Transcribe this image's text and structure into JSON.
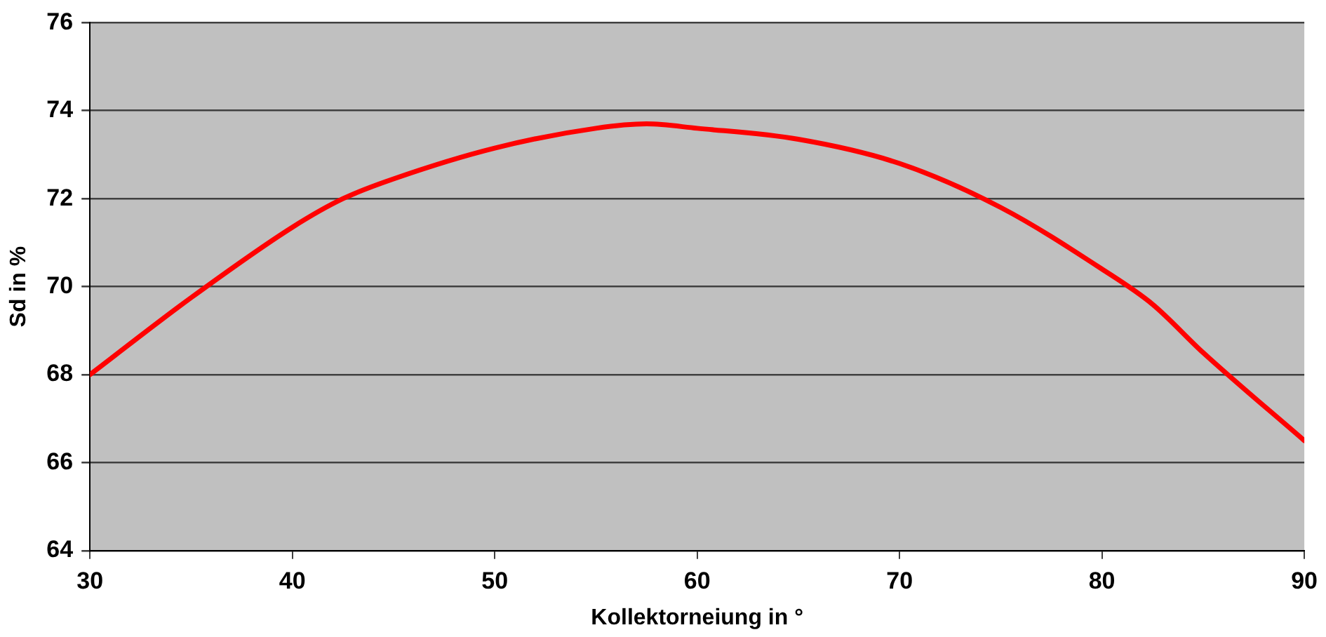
{
  "chart_data": {
    "type": "line",
    "xlabel": "Kollektorneiung in °",
    "ylabel": "Sd in %",
    "x": [
      30,
      35,
      40,
      42.5,
      45,
      50,
      55,
      57.5,
      60,
      65,
      70,
      75,
      80,
      82.5,
      85,
      90
    ],
    "series": [
      {
        "color": "#ff0000",
        "values": [
          68,
          69.75,
          71.35,
          72,
          72.45,
          73.15,
          73.6,
          73.7,
          73.6,
          73.35,
          72.8,
          71.8,
          70.4,
          69.6,
          68.5,
          66.5
        ]
      }
    ],
    "xlim": [
      30,
      90
    ],
    "xticks": [
      30,
      40,
      50,
      60,
      70,
      80,
      90
    ],
    "ylim": [
      64,
      76
    ],
    "yticks": [
      64,
      66,
      68,
      70,
      72,
      74,
      76
    ],
    "grid": "y",
    "legend": false,
    "marker": "none",
    "line_style": "solid"
  }
}
